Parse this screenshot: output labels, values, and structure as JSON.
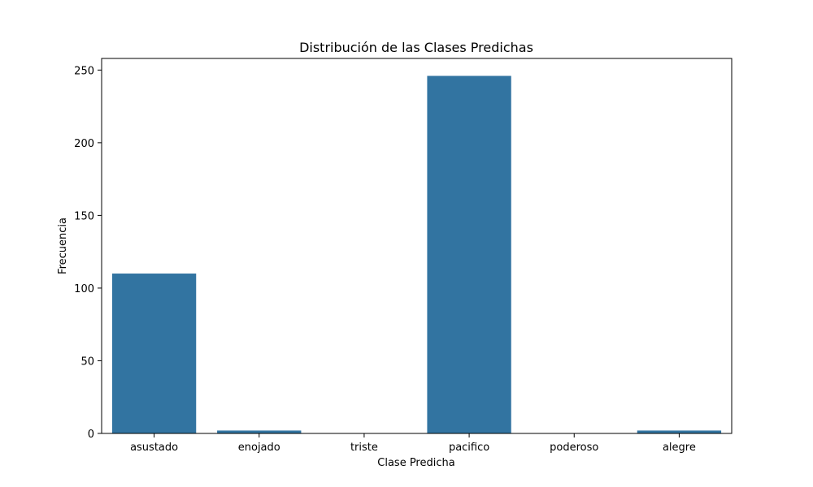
{
  "chart_data": {
    "type": "bar",
    "title": "Distribución de las Clases Predichas",
    "xlabel": "Clase Predicha",
    "ylabel": "Frecuencia",
    "categories": [
      "asustado",
      "enojado",
      "triste",
      "pacifico",
      "poderoso",
      "alegre"
    ],
    "values": [
      110,
      2,
      0,
      246,
      0,
      2
    ],
    "ylim": [
      0,
      258
    ],
    "yticks": [
      "0",
      "50",
      "100",
      "150",
      "200",
      "250"
    ],
    "bar_color": "#3274a1",
    "grid": false,
    "legend": "none"
  }
}
